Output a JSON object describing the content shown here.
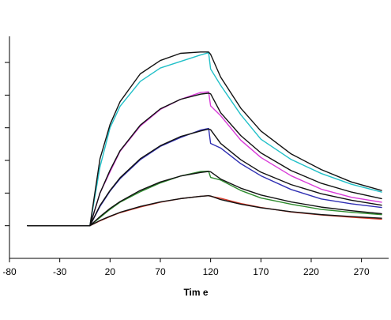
{
  "chart_data": {
    "type": "line",
    "title": "",
    "xlabel": "Tim e",
    "ylabel": "",
    "xlim": [
      -80,
      297
    ],
    "ylim": [
      -10,
      58
    ],
    "x_ticks": [
      -80,
      -30,
      20,
      70,
      120,
      170,
      220,
      270
    ],
    "x_tick_labels": [
      "-80",
      "-30",
      "20",
      "70",
      "120",
      "170",
      "220",
      "270"
    ],
    "y_ticks": [
      0,
      10,
      20,
      30,
      40,
      50
    ],
    "grid": false,
    "legend": "none",
    "association_phase": [
      0,
      120
    ],
    "dissociation_phase": [
      120,
      297
    ],
    "series": [
      {
        "color": "#21c0c8",
        "x": [
          -62,
          0,
          10,
          20,
          30,
          50,
          70,
          90,
          110,
          118,
          120,
          130,
          150,
          170,
          200,
          230,
          260,
          290
        ],
        "values": [
          0,
          0,
          18,
          30,
          36.6,
          44.2,
          48.3,
          50.3,
          52.3,
          53.0,
          48.0,
          43.0,
          34.0,
          26.5,
          20.3,
          16.0,
          12.7,
          10.3
        ]
      },
      {
        "color": "#d93bd9",
        "x": [
          -62,
          0,
          10,
          20,
          30,
          50,
          70,
          90,
          110,
          118,
          120,
          130,
          150,
          170,
          200,
          230,
          260,
          290
        ],
        "values": [
          0,
          0,
          10,
          16.5,
          22.8,
          30.5,
          35.6,
          38.7,
          40.8,
          41.0,
          36.7,
          33.7,
          26.2,
          20.9,
          15.3,
          11.2,
          8.7,
          7.2
        ]
      },
      {
        "color": "#2f2fb3",
        "x": [
          -62,
          0,
          10,
          20,
          30,
          50,
          70,
          90,
          110,
          118,
          120,
          130,
          150,
          170,
          200,
          230,
          260,
          290
        ],
        "values": [
          0,
          0,
          5.9,
          10.6,
          14.4,
          20.2,
          24.3,
          27.0,
          29.3,
          29.8,
          25.2,
          23.8,
          19.0,
          15.3,
          11.1,
          8.2,
          6.7,
          5.6
        ]
      },
      {
        "color": "#2e8b2e",
        "x": [
          -62,
          0,
          10,
          20,
          30,
          50,
          70,
          90,
          110,
          118,
          120,
          130,
          150,
          170,
          200,
          230,
          260,
          290
        ],
        "values": [
          0,
          0,
          2.5,
          5.0,
          7.2,
          10.4,
          13.1,
          15.2,
          16.6,
          16.7,
          14.8,
          14.0,
          10.8,
          8.5,
          6.6,
          5.0,
          4.1,
          3.4
        ]
      },
      {
        "color": "#d63a2a",
        "x": [
          -62,
          0,
          10,
          20,
          30,
          50,
          70,
          90,
          110,
          118,
          120,
          130,
          150,
          170,
          200,
          230,
          260,
          290
        ],
        "values": [
          0,
          0,
          1.5,
          2.8,
          4.0,
          5.7,
          7.2,
          8.3,
          9.0,
          9.2,
          9.0,
          8.4,
          6.8,
          5.6,
          4.2,
          3.3,
          2.6,
          2.0
        ]
      },
      {
        "color": "#111111",
        "x": [
          -62,
          0,
          10,
          20,
          30,
          50,
          70,
          90,
          110,
          118,
          120,
          130,
          150,
          170,
          200,
          230,
          260,
          290
        ],
        "values": [
          0,
          0,
          20.5,
          31.0,
          38.0,
          46.5,
          50.6,
          52.8,
          53.2,
          53.2,
          52.5,
          45.5,
          36.0,
          29.0,
          22.0,
          17.2,
          13.4,
          10.8
        ]
      },
      {
        "color": "#111111",
        "x": [
          -62,
          0,
          10,
          20,
          30,
          50,
          70,
          90,
          110,
          118,
          120,
          130,
          150,
          170,
          200,
          230,
          260,
          290
        ],
        "values": [
          0,
          0,
          10.0,
          17.0,
          23.0,
          30.8,
          35.8,
          38.7,
          40.3,
          40.6,
          40.4,
          34.6,
          27.6,
          22.3,
          16.9,
          13.0,
          10.3,
          8.3
        ]
      },
      {
        "color": "#111111",
        "x": [
          -62,
          0,
          10,
          20,
          30,
          50,
          70,
          90,
          110,
          118,
          120,
          130,
          150,
          170,
          200,
          230,
          260,
          290
        ],
        "values": [
          0,
          0,
          6.2,
          10.8,
          14.7,
          20.5,
          24.5,
          27.3,
          29.0,
          29.6,
          29.4,
          25.2,
          20.2,
          16.4,
          12.6,
          9.8,
          7.8,
          6.3
        ]
      },
      {
        "color": "#111111",
        "x": [
          -62,
          0,
          10,
          20,
          30,
          50,
          70,
          90,
          110,
          118,
          120,
          130,
          150,
          170,
          200,
          230,
          260,
          290
        ],
        "values": [
          0,
          0,
          2.8,
          5.3,
          7.4,
          10.8,
          13.4,
          15.2,
          16.3,
          16.6,
          16.5,
          14.3,
          11.5,
          9.4,
          7.3,
          5.7,
          4.6,
          3.7
        ]
      },
      {
        "color": "#111111",
        "x": [
          -62,
          0,
          10,
          20,
          30,
          50,
          70,
          90,
          110,
          118,
          120,
          130,
          150,
          170,
          200,
          230,
          260,
          290
        ],
        "values": [
          0,
          0,
          1.6,
          2.9,
          4.1,
          5.9,
          7.3,
          8.3,
          9.0,
          9.2,
          9.1,
          8.0,
          6.6,
          5.5,
          4.3,
          3.4,
          2.8,
          2.3
        ]
      }
    ]
  }
}
